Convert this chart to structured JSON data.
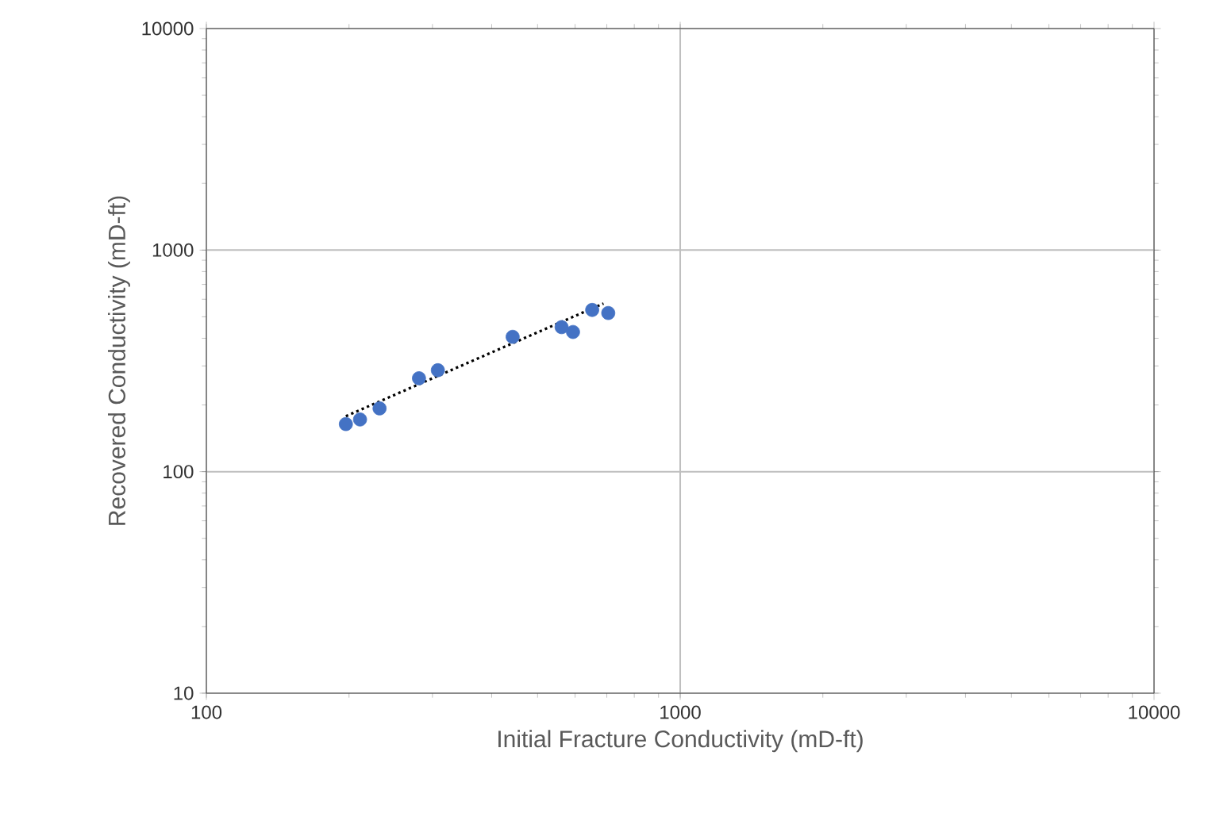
{
  "chart_data": {
    "type": "scatter",
    "xlabel": "Initial Fracture Conductivity (mD-ft)",
    "ylabel": "Recovered Conductivity (mD-ft)",
    "log": "xy",
    "xlim": [
      100,
      10000
    ],
    "ylim": [
      10,
      10000
    ],
    "xticks": [
      100,
      1000,
      10000
    ],
    "yticks": [
      10,
      100,
      1000,
      10000
    ],
    "grid": true,
    "marker": "circle",
    "series": [
      {
        "color": "#4472c4",
        "x": [
          197,
          211,
          232,
          281,
          308,
          443,
          562,
          594,
          652,
          705
        ],
        "values": [
          164,
          172,
          193,
          264,
          287,
          406,
          449,
          427,
          537,
          520
        ]
      },
      {
        "type": "line",
        "color": "#000000",
        "line_style": "dotted",
        "marker": "none",
        "x": [
          197,
          689
        ],
        "values": [
          178,
          574
        ]
      }
    ]
  }
}
